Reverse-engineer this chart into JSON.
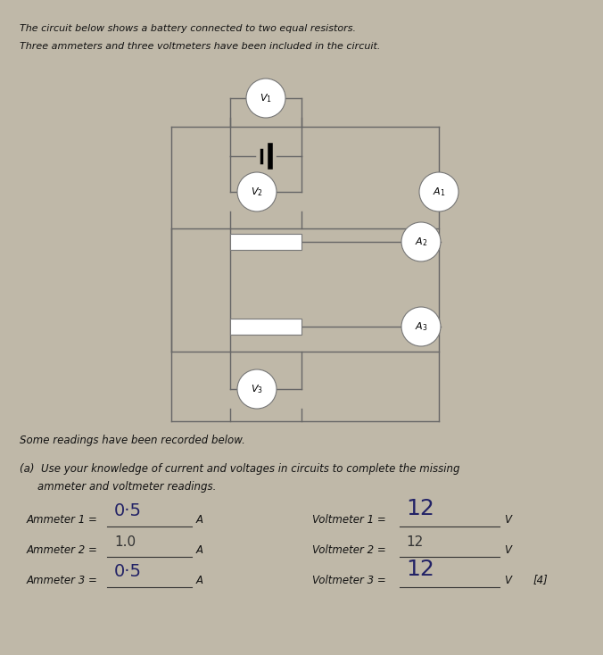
{
  "bg_color": "#bfb8a8",
  "title_line1": "The circuit below shows a battery connected to two equal resistors.",
  "title_line2": "Three ammeters and three voltmeters have been included in the circuit.",
  "some_readings_text": "Some readings have been recorded below.",
  "ammeter1_label": "Ammeter 1 =",
  "ammeter1_value": "0·5",
  "ammeter1_unit": "A",
  "ammeter2_label": "Ammeter 2 =",
  "ammeter2_value": "1.0",
  "ammeter2_unit": "A",
  "ammeter3_label": "Ammeter 3 =",
  "ammeter3_value": "0·5",
  "ammeter3_unit": "A",
  "voltmeter1_label": "Voltmeter 1 =",
  "voltmeter1_value": "12",
  "voltmeter1_unit": "V",
  "voltmeter2_label": "Voltmeter 2 =",
  "voltmeter2_value": "12",
  "voltmeter2_unit": "V",
  "voltmeter3_label": "Voltmeter 3 =",
  "voltmeter3_value": "12",
  "voltmeter3_unit": "V",
  "mark_label": "[4]"
}
